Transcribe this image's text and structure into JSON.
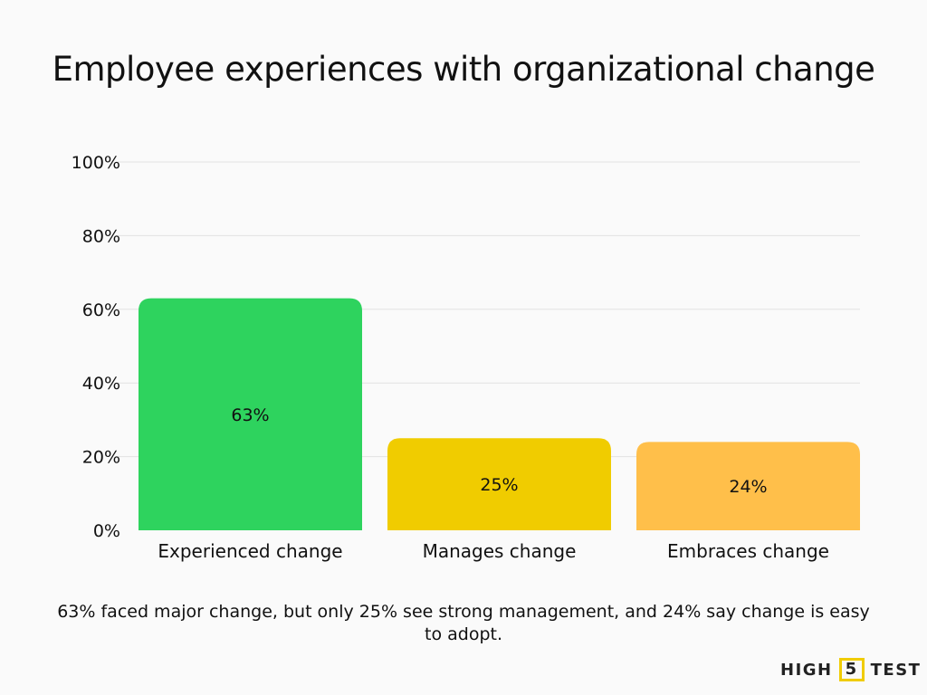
{
  "chart_data": {
    "type": "bar",
    "title": "Employee experiences with organizational change",
    "categories": [
      "Experienced change",
      "Manages change",
      "Embraces change"
    ],
    "values": [
      63,
      25,
      24
    ],
    "data_labels": [
      "63%",
      "25%",
      "24%"
    ],
    "colors": [
      "#2ed35e",
      "#f0cc00",
      "#ffbf4a"
    ],
    "ylim": [
      0,
      100
    ],
    "yticks": [
      0,
      20,
      40,
      60,
      80,
      100
    ],
    "ytick_labels": [
      "0%",
      "20%",
      "40%",
      "60%",
      "80%",
      "100%"
    ],
    "grid": true,
    "xlabel": "",
    "ylabel": ""
  },
  "caption": "63% faced major change, but only 25% see strong management, and 24% say change is easy to adopt.",
  "logo": {
    "left": "HIGH",
    "mid": "5",
    "right": "TEST"
  }
}
